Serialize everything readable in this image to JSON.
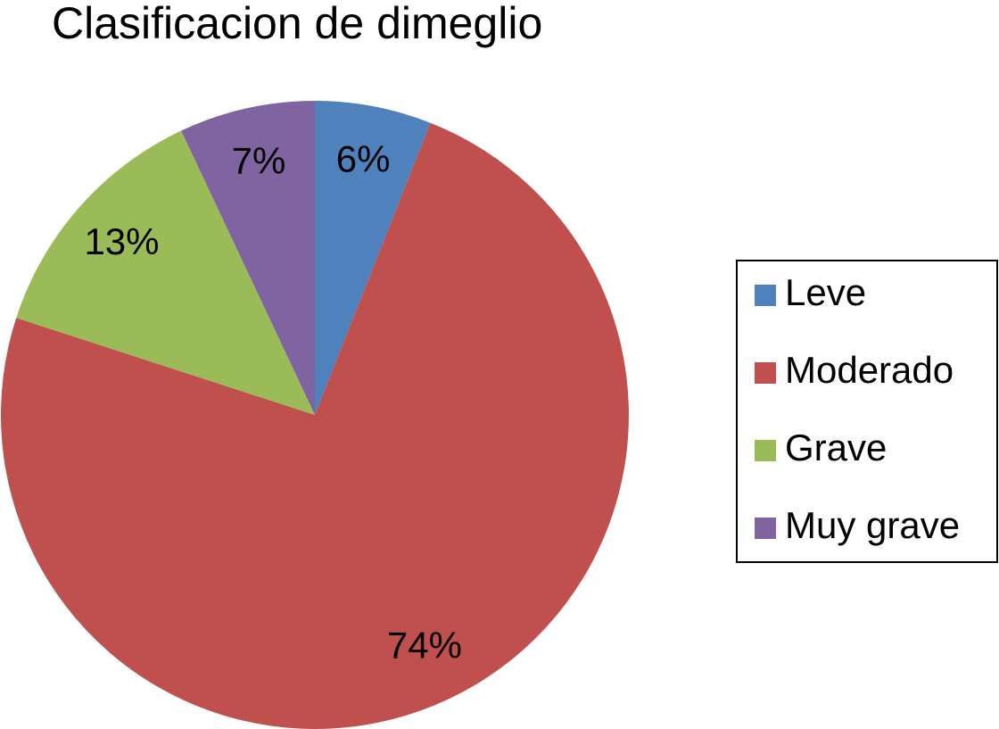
{
  "chart_data": {
    "type": "pie",
    "title": "Clasificacion de dimeglio",
    "categories": [
      "Leve",
      "Moderado",
      "Grave",
      "Muy grave"
    ],
    "values": [
      6,
      74,
      13,
      7
    ],
    "value_labels": [
      "6%",
      "74%",
      "13%",
      "7%"
    ],
    "colors": [
      "#4f81bd",
      "#c0504d",
      "#9bbb59",
      "#8064a2"
    ],
    "legend": "right"
  }
}
